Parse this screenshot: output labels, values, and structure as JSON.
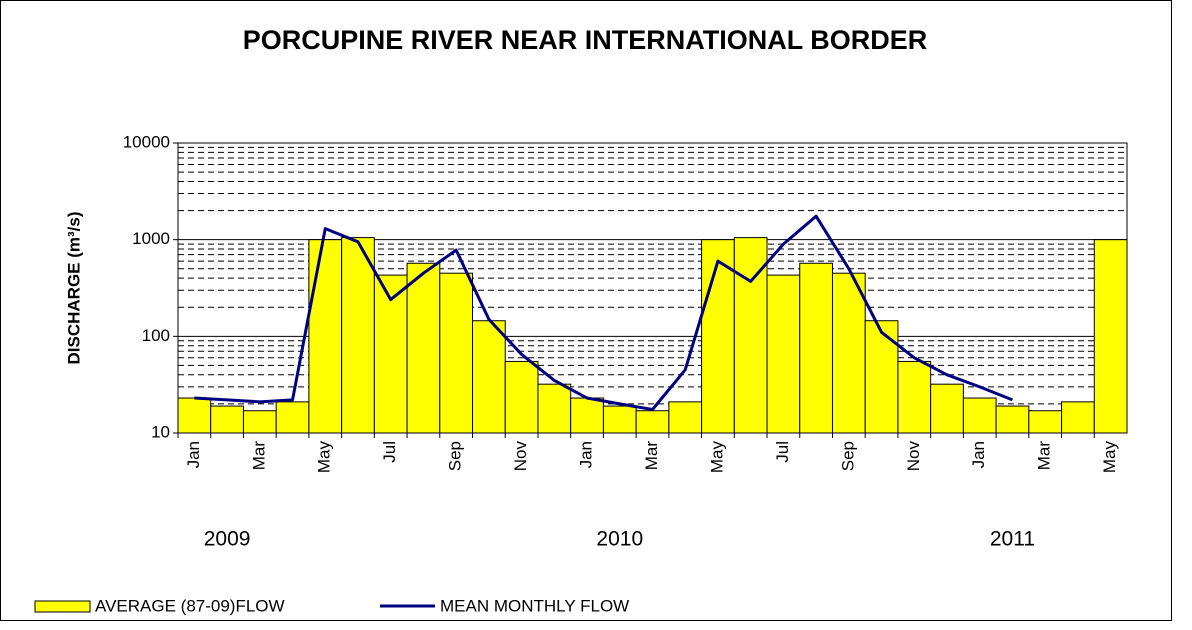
{
  "chart_data": {
    "type": "bar_line",
    "title": "PORCUPINE RIVER NEAR INTERNATIONAL BORDER",
    "y_label": "DISCHARGE (m³/s)",
    "categories": [
      "Jan",
      null,
      "Mar",
      null,
      "May",
      null,
      "Jul",
      null,
      "Sep",
      null,
      "Nov",
      null,
      "Jan",
      null,
      "Mar",
      null,
      "May",
      null,
      "Jul",
      null,
      "Sep",
      null,
      "Nov",
      null,
      "Jan",
      null,
      "Mar",
      null,
      "May"
    ],
    "year_labels": [
      "2009",
      "2010",
      "2011"
    ],
    "series": [
      {
        "name": "AVERAGE (87-09)FLOW",
        "kind": "bar",
        "color": "#ffff00",
        "values": [
          23,
          19,
          17,
          21,
          1000,
          1050,
          430,
          570,
          450,
          145,
          55,
          32,
          23,
          19,
          17,
          21,
          1000,
          1050,
          430,
          570,
          450,
          145,
          55,
          32,
          23,
          19,
          17,
          21,
          1000
        ]
      },
      {
        "name": "MEAN MONTHLY FLOW",
        "kind": "line",
        "color": "#000080",
        "values": [
          23,
          22,
          21,
          22,
          1300,
          950,
          240,
          450,
          780,
          150,
          65,
          35,
          23,
          20,
          17.5,
          45,
          600,
          370,
          900,
          1750,
          500,
          110,
          60,
          40,
          30,
          22,
          null,
          null,
          null
        ]
      }
    ],
    "log_scale": true,
    "ylim": [
      10,
      10000
    ],
    "yticks": [
      10,
      100,
      1000,
      10000
    ],
    "grid": true
  }
}
